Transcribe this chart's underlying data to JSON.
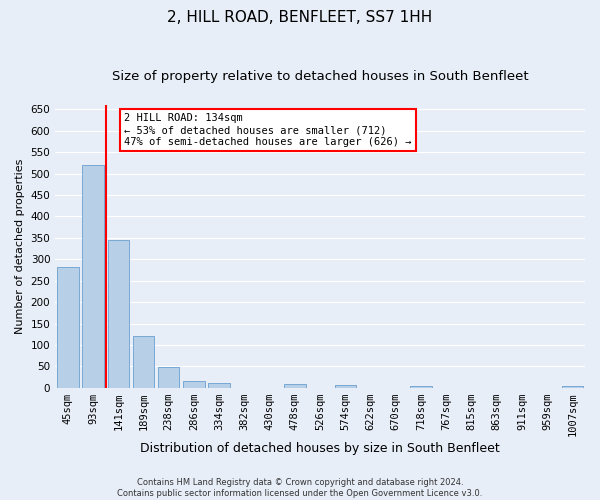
{
  "title": "2, HILL ROAD, BENFLEET, SS7 1HH",
  "subtitle": "Size of property relative to detached houses in South Benfleet",
  "xlabel": "Distribution of detached houses by size in South Benfleet",
  "ylabel": "Number of detached properties",
  "footer_line1": "Contains HM Land Registry data © Crown copyright and database right 2024.",
  "footer_line2": "Contains public sector information licensed under the Open Government Licence v3.0.",
  "categories": [
    "45sqm",
    "93sqm",
    "141sqm",
    "189sqm",
    "238sqm",
    "286sqm",
    "334sqm",
    "382sqm",
    "430sqm",
    "478sqm",
    "526sqm",
    "574sqm",
    "622sqm",
    "670sqm",
    "718sqm",
    "767sqm",
    "815sqm",
    "863sqm",
    "911sqm",
    "959sqm",
    "1007sqm"
  ],
  "values": [
    283,
    521,
    344,
    120,
    48,
    17,
    11,
    0,
    0,
    9,
    0,
    6,
    0,
    0,
    5,
    0,
    0,
    0,
    0,
    0,
    5
  ],
  "bar_color": "#b8cfe8",
  "bar_edge_color": "#6a9fd0",
  "vline_color": "red",
  "vline_position": 1.5,
  "annotation_text": "2 HILL ROAD: 134sqm\n← 53% of detached houses are smaller (712)\n47% of semi-detached houses are larger (626) →",
  "annotation_box_color": "white",
  "annotation_box_edge": "red",
  "ylim": [
    0,
    660
  ],
  "yticks": [
    0,
    50,
    100,
    150,
    200,
    250,
    300,
    350,
    400,
    450,
    500,
    550,
    600,
    650
  ],
  "background_color": "#e8eef8",
  "grid_color": "white",
  "title_fontsize": 11,
  "subtitle_fontsize": 9.5,
  "xlabel_fontsize": 9,
  "ylabel_fontsize": 8,
  "tick_fontsize": 7.5,
  "annotation_fontsize": 7.5,
  "footer_fontsize": 6
}
